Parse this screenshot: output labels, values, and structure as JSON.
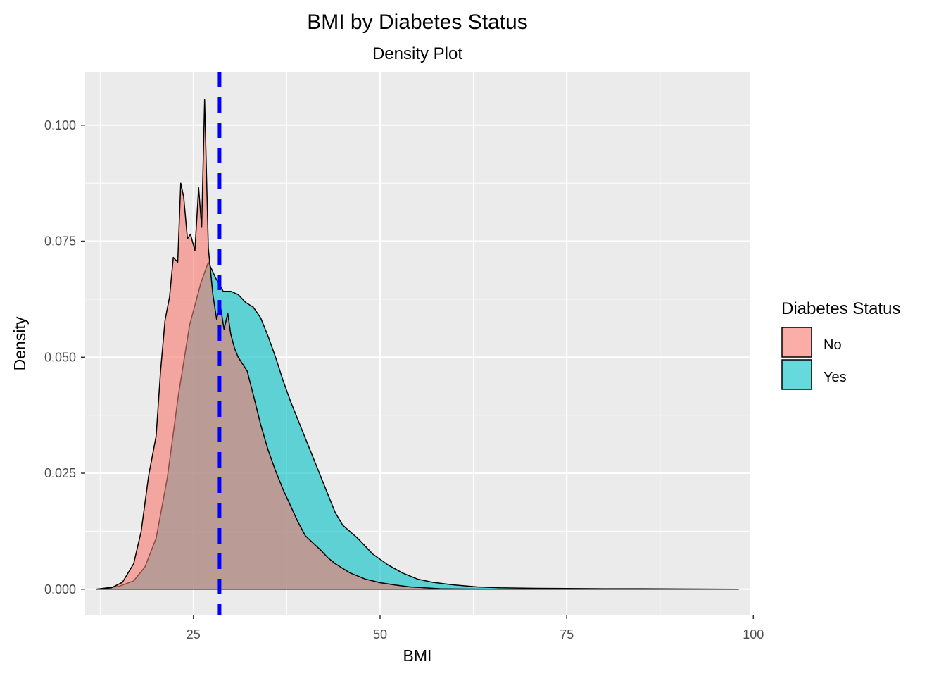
{
  "chart_data": {
    "type": "area",
    "title": "BMI by Diabetes Status",
    "subtitle": "Density Plot",
    "xlabel": "BMI",
    "ylabel": "Density",
    "xlim": [
      10.5,
      99.5
    ],
    "ylim": [
      -0.0055,
      0.1115
    ],
    "x_ticks": [
      25,
      50,
      75,
      100
    ],
    "x_tick_labels": [
      "25",
      "50",
      "75",
      "100"
    ],
    "y_ticks": [
      0.0,
      0.025,
      0.05,
      0.075,
      0.1
    ],
    "y_tick_labels": [
      "0.000",
      "0.025",
      "0.050",
      "0.075",
      "0.100"
    ],
    "grid": true,
    "legend": {
      "title": "Diabetes Status",
      "position": "right",
      "items": [
        {
          "label": "No",
          "color": "#F8766D"
        },
        {
          "label": "Yes",
          "color": "#00BFC4"
        }
      ]
    },
    "reference_line": {
      "x": 28.5,
      "color": "#0000FF",
      "style": "dashed"
    },
    "series": [
      {
        "name": "Yes",
        "color": "#00BFC4",
        "x": [
          12,
          15,
          17,
          18.5,
          20,
          21.5,
          23,
          24.5,
          26,
          27,
          28,
          29,
          30,
          31,
          32,
          33,
          34,
          35,
          36,
          37,
          38,
          39,
          40,
          41,
          42,
          43,
          44,
          45,
          47,
          49,
          51,
          53,
          55,
          57,
          60,
          63,
          66,
          70,
          75,
          80,
          85,
          90,
          98
        ],
        "y": [
          0.0,
          0.0006,
          0.0018,
          0.0048,
          0.011,
          0.024,
          0.042,
          0.057,
          0.066,
          0.0705,
          0.067,
          0.0642,
          0.0642,
          0.0635,
          0.0618,
          0.0608,
          0.0585,
          0.0545,
          0.05,
          0.045,
          0.0405,
          0.0365,
          0.0325,
          0.0285,
          0.0245,
          0.0205,
          0.0165,
          0.0138,
          0.011,
          0.0076,
          0.0053,
          0.0035,
          0.0022,
          0.0015,
          0.0009,
          0.0005,
          0.0003,
          0.0002,
          0.00015,
          0.0001,
          0.0001,
          5e-05,
          0.0
        ]
      },
      {
        "name": "No",
        "color": "#F8766D",
        "x": [
          12,
          14,
          15.5,
          17,
          18,
          19,
          20,
          20.6,
          21.2,
          21.8,
          22.3,
          22.9,
          23.3,
          23.7,
          24.2,
          24.6,
          25.2,
          25.7,
          26.1,
          26.5,
          27.0,
          27.3,
          27.6,
          28.1,
          28.6,
          29.1,
          29.6,
          30.0,
          30.5,
          31.0,
          31.6,
          32.2,
          33.0,
          34.0,
          35.0,
          36.0,
          37.0,
          38.0,
          39.0,
          40.0,
          41.0,
          42.0,
          43.0,
          44.0,
          45.0,
          46.0,
          48.0,
          50.0,
          52.0,
          54.0,
          56.0,
          58.0,
          60.0,
          65.0,
          70.0,
          80.0,
          98.0
        ],
        "y": [
          0.0,
          0.0003,
          0.0015,
          0.0055,
          0.0125,
          0.0245,
          0.033,
          0.047,
          0.058,
          0.063,
          0.0715,
          0.0705,
          0.0875,
          0.0845,
          0.0755,
          0.0765,
          0.073,
          0.0865,
          0.078,
          0.1055,
          0.0735,
          0.0685,
          0.0635,
          0.0582,
          0.0612,
          0.056,
          0.0595,
          0.055,
          0.052,
          0.05,
          0.0485,
          0.047,
          0.042,
          0.0355,
          0.03,
          0.0255,
          0.0215,
          0.018,
          0.0145,
          0.0115,
          0.01,
          0.0085,
          0.0068,
          0.0055,
          0.0045,
          0.0035,
          0.0022,
          0.0014,
          0.0009,
          0.0005,
          0.0003,
          0.0001,
          5e-05,
          0.0,
          0.0,
          0.0,
          0.0
        ]
      }
    ]
  }
}
